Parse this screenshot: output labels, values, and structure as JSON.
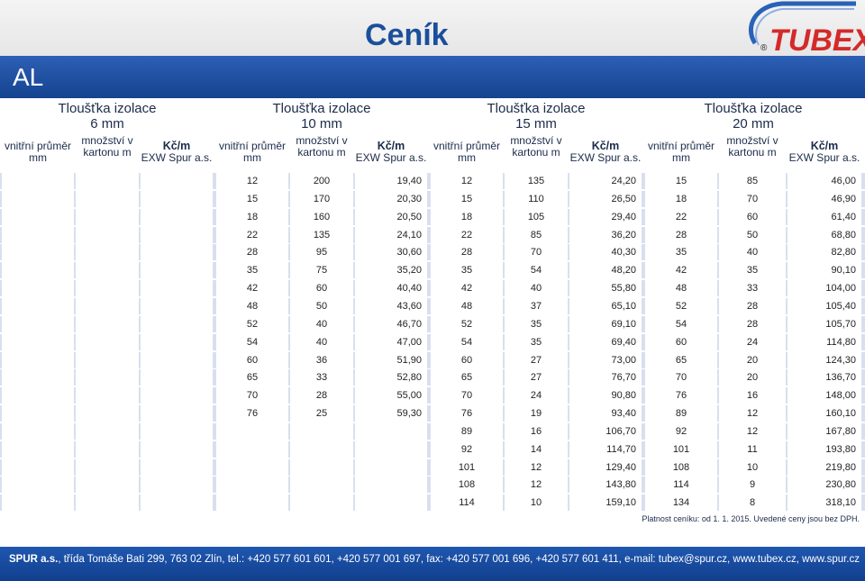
{
  "page": {
    "title": "Ceník",
    "section": "AL",
    "brand": "TUBEX",
    "registered_mark": "®",
    "colors": {
      "blue": "#14438f",
      "title": "#1a4f9c",
      "brand_red": "#d42a2a",
      "row_band": "#d8dfee"
    }
  },
  "groups": [
    {
      "title_line1": "Tloušťka izolace",
      "title_line2": "6 mm",
      "col_diameter": "vnitřní průměr mm",
      "col_qty": "množství v kartonu m",
      "col_price_l1": "Kč/m",
      "col_price_l2": "EXW Spur a.s.",
      "rows": []
    },
    {
      "title_line1": "Tloušťka izolace",
      "title_line2": "10 mm",
      "col_diameter": "vnitřní průměr mm",
      "col_qty": "množství v kartonu m",
      "col_price_l1": "Kč/m",
      "col_price_l2": "EXW Spur a.s.",
      "rows": [
        [
          "12",
          "200",
          "19,40"
        ],
        [
          "15",
          "170",
          "20,30"
        ],
        [
          "18",
          "160",
          "20,50"
        ],
        [
          "22",
          "135",
          "24,10"
        ],
        [
          "28",
          "95",
          "30,60"
        ],
        [
          "35",
          "75",
          "35,20"
        ],
        [
          "42",
          "60",
          "40,40"
        ],
        [
          "48",
          "50",
          "43,60"
        ],
        [
          "52",
          "40",
          "46,70"
        ],
        [
          "54",
          "40",
          "47,00"
        ],
        [
          "60",
          "36",
          "51,90"
        ],
        [
          "65",
          "33",
          "52,80"
        ],
        [
          "70",
          "28",
          "55,00"
        ],
        [
          "76",
          "25",
          "59,30"
        ]
      ]
    },
    {
      "title_line1": "Tloušťka izolace",
      "title_line2": "15 mm",
      "col_diameter": "vnitřní průměr mm",
      "col_qty": "množství v kartonu m",
      "col_price_l1": "Kč/m",
      "col_price_l2": "EXW Spur a.s.",
      "rows": [
        [
          "12",
          "135",
          "24,20"
        ],
        [
          "15",
          "110",
          "26,50"
        ],
        [
          "18",
          "105",
          "29,40"
        ],
        [
          "22",
          "85",
          "36,20"
        ],
        [
          "28",
          "70",
          "40,30"
        ],
        [
          "35",
          "54",
          "48,20"
        ],
        [
          "42",
          "40",
          "55,80"
        ],
        [
          "48",
          "37",
          "65,10"
        ],
        [
          "52",
          "35",
          "69,10"
        ],
        [
          "54",
          "35",
          "69,40"
        ],
        [
          "60",
          "27",
          "73,00"
        ],
        [
          "65",
          "27",
          "76,70"
        ],
        [
          "70",
          "24",
          "90,80"
        ],
        [
          "76",
          "19",
          "93,40"
        ],
        [
          "89",
          "16",
          "106,70"
        ],
        [
          "92",
          "14",
          "114,70"
        ],
        [
          "101",
          "12",
          "129,40"
        ],
        [
          "108",
          "12",
          "143,80"
        ],
        [
          "114",
          "10",
          "159,10"
        ]
      ]
    },
    {
      "title_line1": "Tloušťka izolace",
      "title_line2": "20 mm",
      "col_diameter": "vnitřní průměr mm",
      "col_qty": "množství v kartonu m",
      "col_price_l1": "Kč/m",
      "col_price_l2": "EXW Spur a.s.",
      "rows": [
        [
          "15",
          "85",
          "46,00"
        ],
        [
          "18",
          "70",
          "46,90"
        ],
        [
          "22",
          "60",
          "61,40"
        ],
        [
          "28",
          "50",
          "68,80"
        ],
        [
          "35",
          "40",
          "82,80"
        ],
        [
          "42",
          "35",
          "90,10"
        ],
        [
          "48",
          "33",
          "104,00"
        ],
        [
          "52",
          "28",
          "105,40"
        ],
        [
          "54",
          "28",
          "105,70"
        ],
        [
          "60",
          "24",
          "114,80"
        ],
        [
          "65",
          "20",
          "124,30"
        ],
        [
          "70",
          "20",
          "136,70"
        ],
        [
          "76",
          "16",
          "148,00"
        ],
        [
          "89",
          "12",
          "160,10"
        ],
        [
          "92",
          "12",
          "167,80"
        ],
        [
          "101",
          "11",
          "193,80"
        ],
        [
          "108",
          "10",
          "219,80"
        ],
        [
          "114",
          "9",
          "230,80"
        ],
        [
          "134",
          "8",
          "318,10"
        ]
      ]
    }
  ],
  "note": "Platnost ceníku: od 1. 1. 2015. Uvedené ceny jsou bez DPH.",
  "footer": {
    "company": "SPUR a.s.",
    "text": ", třída Tomáše Bati 299, 763 02 Zlín, tel.: +420 577 601 601, +420 577 001 697, fax: +420 577 001 696, +420 577 601 411, e-mail: tubex@spur.cz, www.tubex.cz, www.spur.cz"
  }
}
